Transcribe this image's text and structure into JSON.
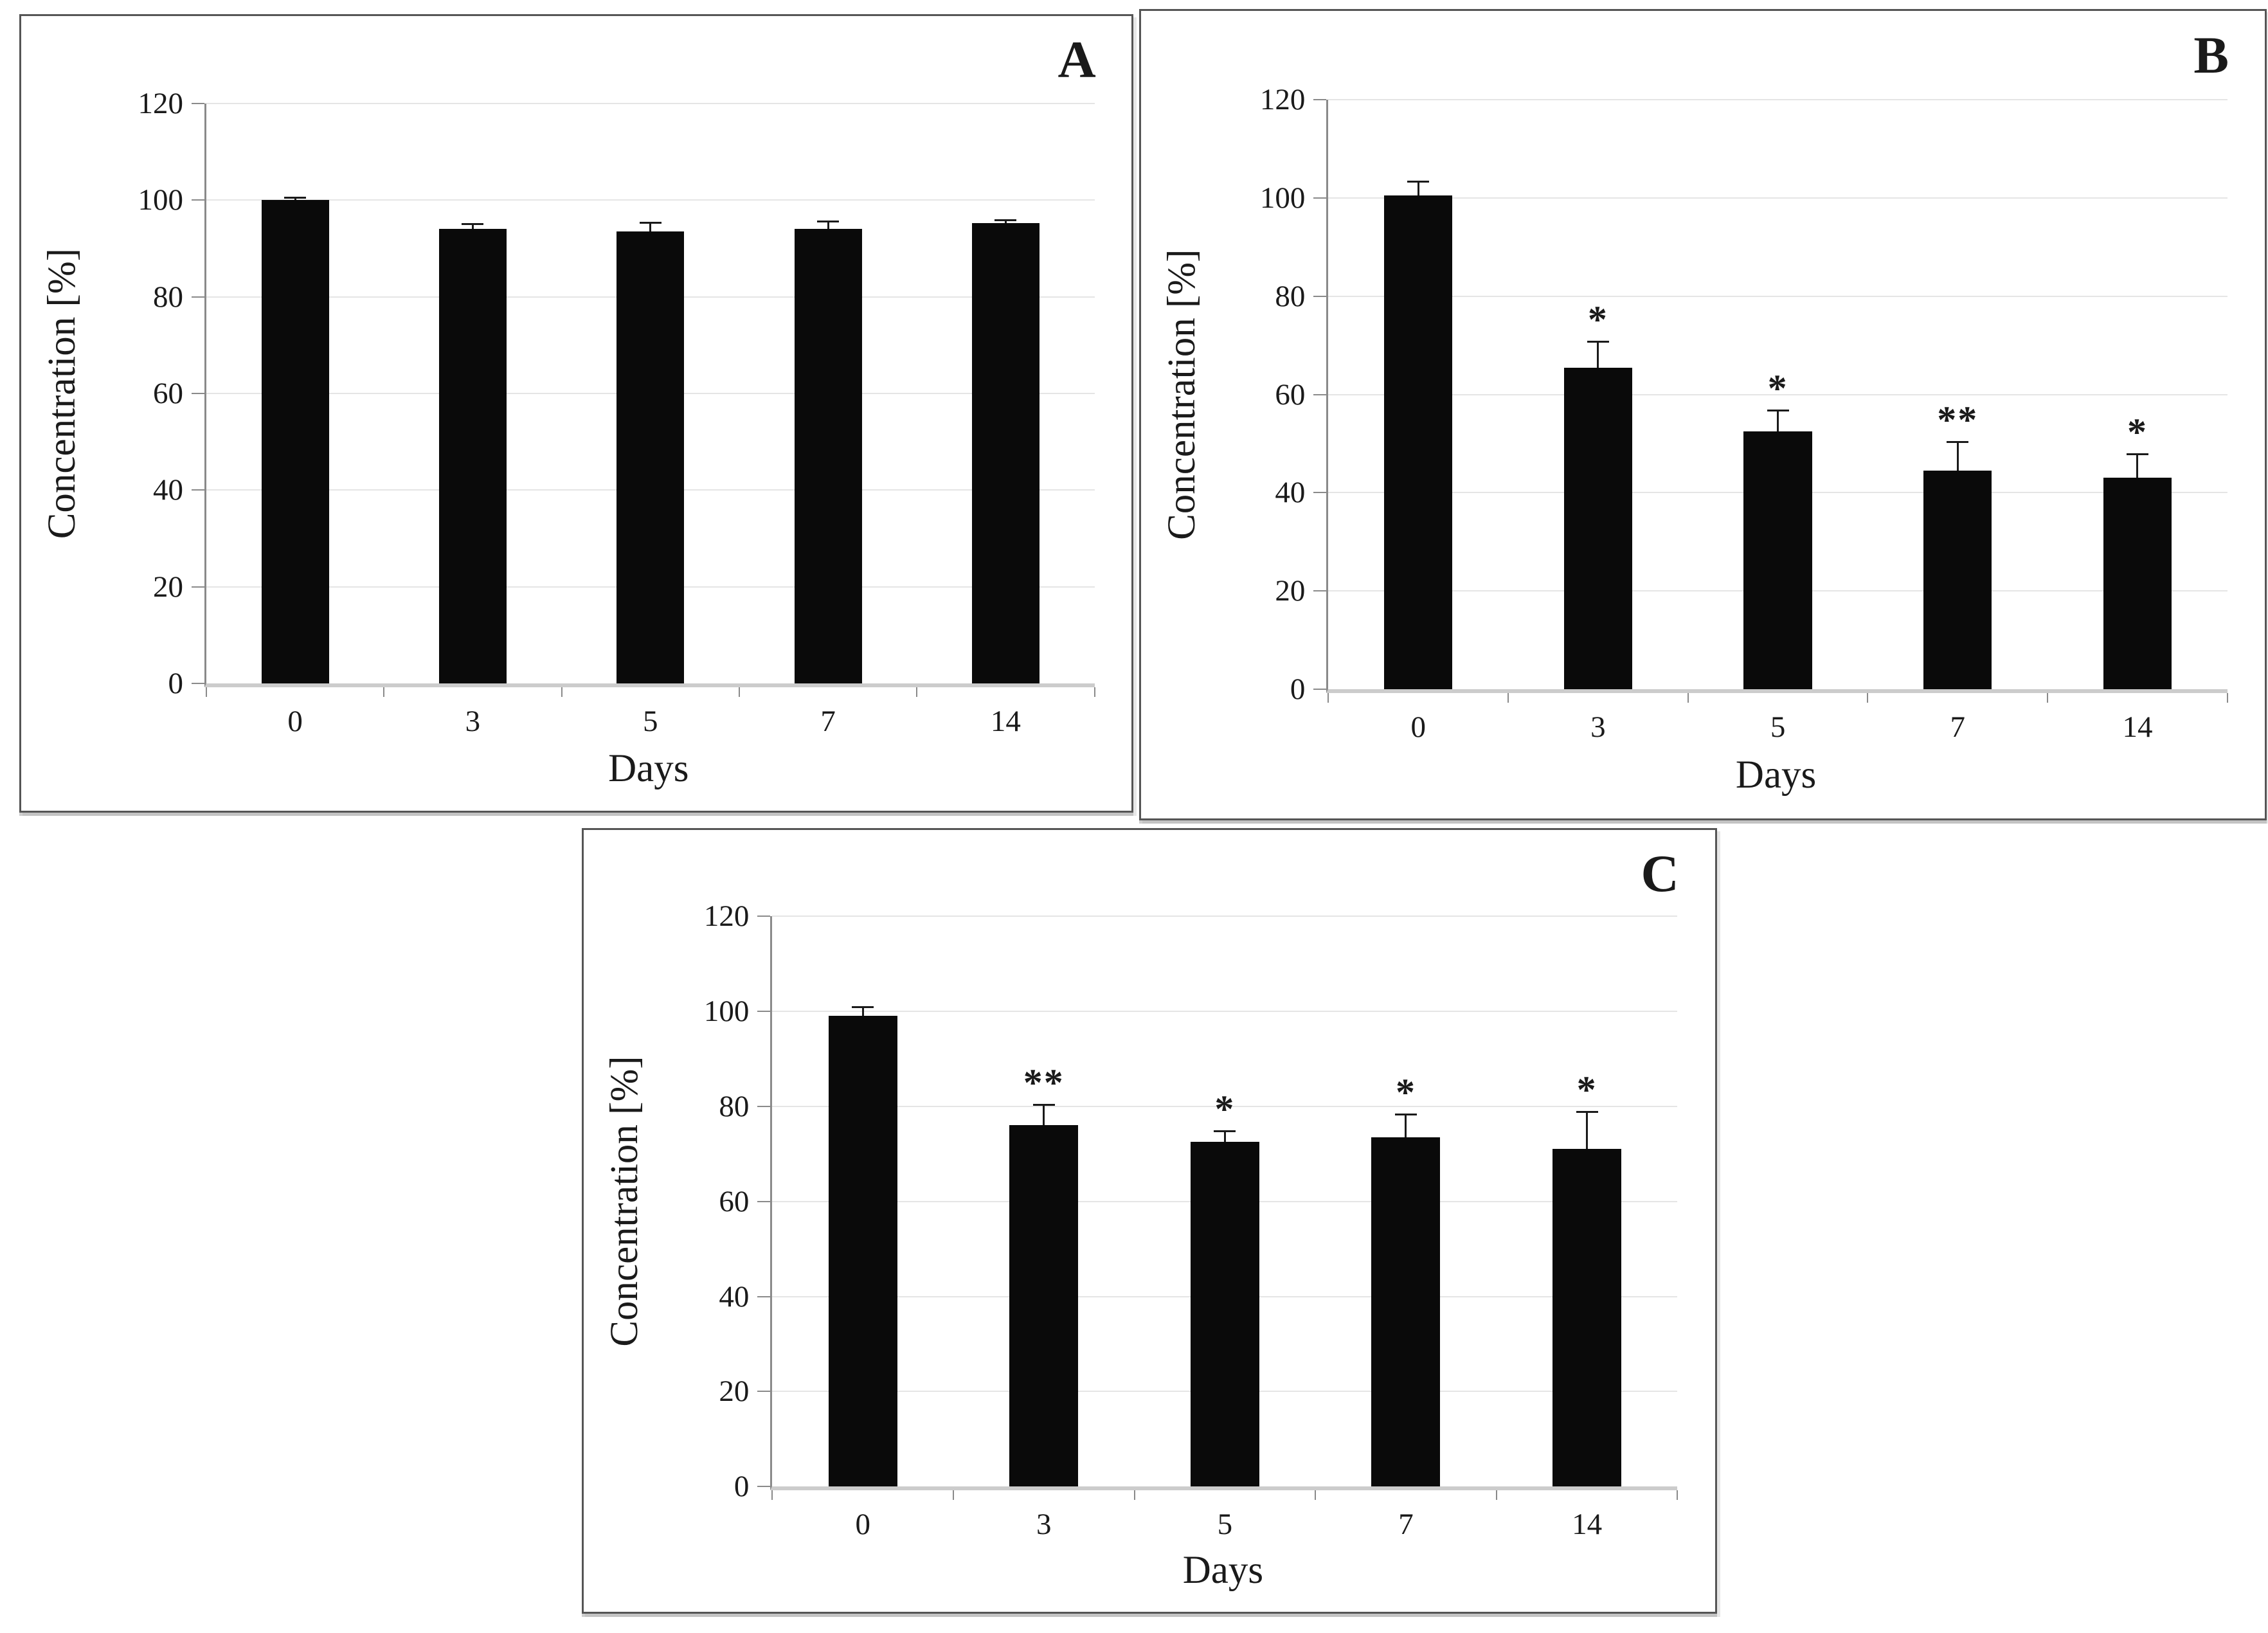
{
  "figure": {
    "background": "#ffffff",
    "panels": [
      "A",
      "B",
      "C"
    ]
  },
  "colors": {
    "bar": "#0a0a0a",
    "text": "#1a1a1a",
    "gridline": "#e5e5e5",
    "axis_line": "#8a8a8a",
    "baseline": "#cccccc",
    "panel_border": "#555555"
  },
  "chart_data": [
    {
      "type": "bar",
      "panel_label": "A",
      "title": "",
      "xlabel": "Days",
      "ylabel": "Concentration [%]",
      "categories": [
        "0",
        "3",
        "5",
        "7",
        "14"
      ],
      "values": [
        100,
        94,
        93.5,
        94,
        95.3
      ],
      "errors": [
        0.7,
        1.3,
        2.0,
        1.8,
        0.8
      ],
      "significance": [
        "",
        "",
        "",
        "",
        ""
      ],
      "ylim": [
        0,
        120
      ],
      "yticks": [
        0,
        20,
        40,
        60,
        80,
        100,
        120
      ],
      "grid": "horizontal",
      "legend": "none"
    },
    {
      "type": "bar",
      "panel_label": "B",
      "title": "",
      "xlabel": "Days",
      "ylabel": "Concentration [%]",
      "categories": [
        "0",
        "3",
        "5",
        "7",
        "14"
      ],
      "values": [
        100.5,
        65.5,
        52.5,
        44.5,
        43
      ],
      "errors": [
        3,
        5.5,
        4.5,
        6,
        5
      ],
      "significance": [
        "",
        "*",
        "*",
        "**",
        "*"
      ],
      "ylim": [
        0,
        120
      ],
      "yticks": [
        0,
        20,
        40,
        60,
        80,
        100,
        120
      ],
      "grid": "horizontal",
      "legend": "none"
    },
    {
      "type": "bar",
      "panel_label": "C",
      "title": "",
      "xlabel": "Days",
      "ylabel": "Concentration [%]",
      "categories": [
        "0",
        "3",
        "5",
        "7",
        "14"
      ],
      "values": [
        99,
        76,
        72.5,
        73.5,
        71
      ],
      "errors": [
        2,
        4.5,
        2.5,
        5,
        8
      ],
      "significance": [
        "",
        "**",
        "*",
        "*",
        "*"
      ],
      "ylim": [
        0,
        120
      ],
      "yticks": [
        0,
        20,
        40,
        60,
        80,
        100,
        120
      ],
      "grid": "horizontal",
      "legend": "none"
    }
  ]
}
